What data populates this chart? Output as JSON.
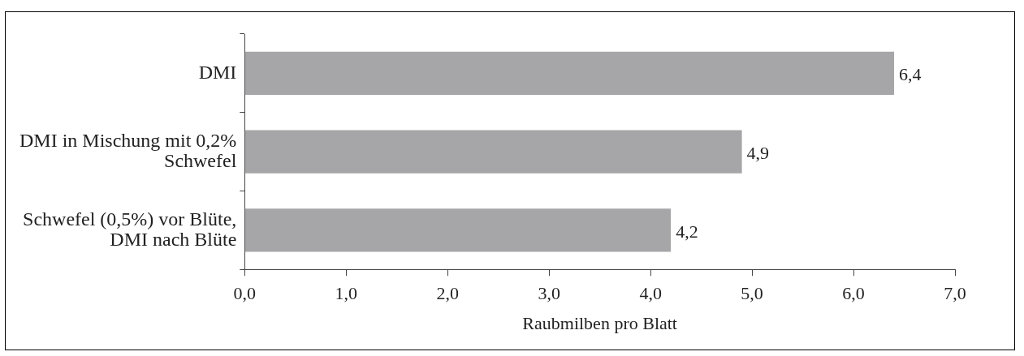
{
  "chart_data": {
    "type": "bar",
    "orientation": "horizontal",
    "xlabel": "Raubmilben pro Blatt",
    "categories": [
      "DMI",
      "DMI in Mischung mit 0,2% Schwefel",
      "Schwefel (0,5%) vor Blüte, DMI nach Blüte"
    ],
    "values": [
      6.4,
      4.9,
      4.2
    ],
    "value_labels": [
      "6,4",
      "4,9",
      "4,2"
    ],
    "color": "#a6a6a8",
    "xlim": [
      0,
      7
    ],
    "xticks": [
      {
        "value": 0,
        "label": "0,0"
      },
      {
        "value": 1,
        "label": "1,0"
      },
      {
        "value": 2,
        "label": "2,0"
      },
      {
        "value": 3,
        "label": "3,0"
      },
      {
        "value": 4,
        "label": "4,0"
      },
      {
        "value": 5,
        "label": "5,0"
      },
      {
        "value": 6,
        "label": "6,0"
      },
      {
        "value": 7,
        "label": "7,0"
      }
    ],
    "grid": false,
    "legend": false
  }
}
